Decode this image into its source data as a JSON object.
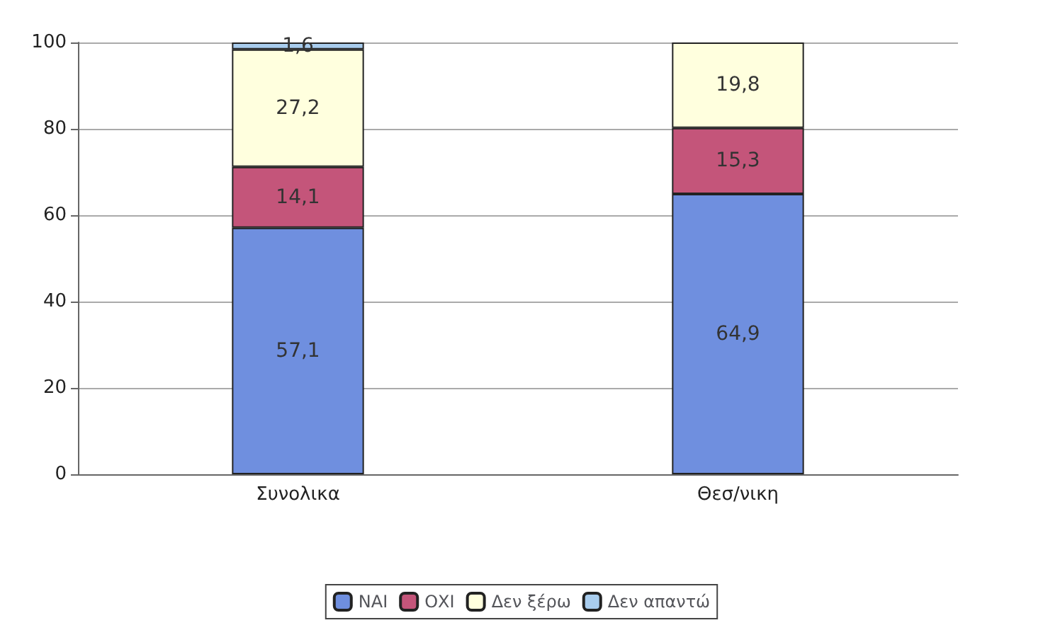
{
  "chart_data": {
    "type": "bar",
    "stacked": true,
    "categories": [
      "Συνολικα",
      "Θεσ/νικη"
    ],
    "series": [
      {
        "name": "ΝΑΙ",
        "color": "#6f8fdf",
        "values": [
          57.1,
          64.9
        ],
        "value_labels": [
          "57,1",
          "64,9"
        ]
      },
      {
        "name": "ΟΧΙ",
        "color": "#c4557a",
        "values": [
          14.1,
          15.3
        ],
        "value_labels": [
          "14,1",
          "15,3"
        ]
      },
      {
        "name": "Δεν ξέρω",
        "color": "#ffffde",
        "values": [
          27.2,
          19.8
        ],
        "value_labels": [
          "27,2",
          "19,8"
        ]
      },
      {
        "name": "Δεν απαντώ",
        "color": "#a9cdee",
        "values": [
          1.6,
          null
        ],
        "value_labels": [
          "1,6",
          null
        ]
      }
    ],
    "ylim": [
      0,
      100
    ],
    "yticks": [
      0,
      20,
      40,
      60,
      80,
      100
    ],
    "grid": "y",
    "legend": "bottom"
  }
}
